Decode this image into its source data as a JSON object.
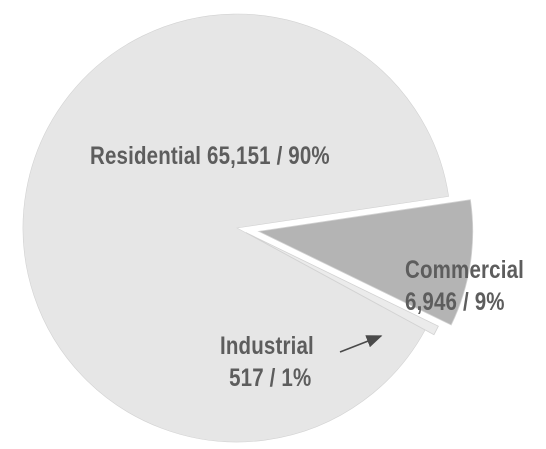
{
  "chart_data": {
    "type": "pie",
    "slices": [
      {
        "name": "Residential",
        "value": 65151,
        "display_value": "65,151",
        "percent": "90%",
        "color": "#e6e6e6",
        "exploded": false
      },
      {
        "name": "Commercial",
        "value": 6946,
        "display_value": "6,946",
        "percent": "9%",
        "color": "#b4b4b4",
        "exploded": true
      },
      {
        "name": "Industrial",
        "value": 517,
        "display_value": "517",
        "percent": "1%",
        "color": "#ebebeb",
        "exploded": true
      }
    ],
    "labels": {
      "residential": "Residential 65,151 / 90%",
      "commercial_line1": "Commercial",
      "commercial_line2": "6,946 / 9%",
      "industrial_line1": "Industrial",
      "industrial_line2": "517 / 1%"
    },
    "annotation": "arrow from Industrial label to Industrial slice",
    "colors": {
      "residential": "#e6e6e6",
      "commercial": "#b4b4b4",
      "industrial": "#ebebeb",
      "label_text": "#5d5d5d",
      "arrow": "#4a4a4a"
    }
  }
}
